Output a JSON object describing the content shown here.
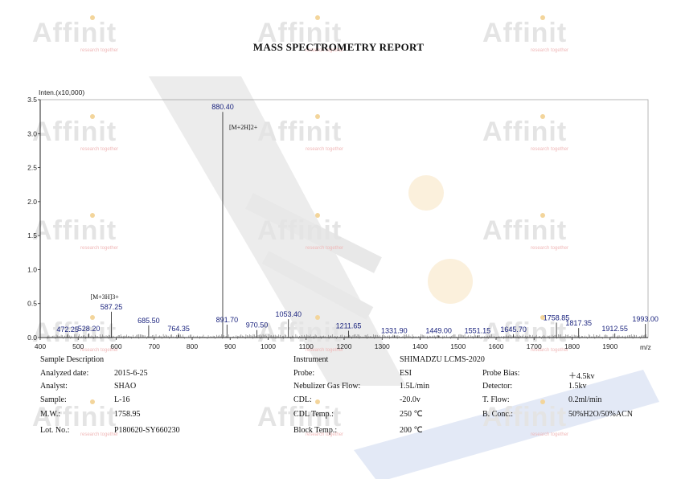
{
  "title": "MASS SPECTROMETRY REPORT",
  "watermark": {
    "brand": "Affinit",
    "tagline": "research together"
  },
  "chart_data": {
    "type": "bar",
    "ylabel": "Inten.(x10,000)",
    "xlabel": "m/z",
    "xlim": [
      400,
      2000
    ],
    "ylim": [
      0,
      3.5
    ],
    "x_ticks": [
      400,
      500,
      600,
      700,
      800,
      900,
      1000,
      1100,
      1200,
      1300,
      1400,
      1500,
      1600,
      1700,
      1800,
      1900
    ],
    "y_ticks": [
      "0.0",
      "0.5",
      "1.0",
      "1.5",
      "2.0",
      "2.5",
      "3.0",
      "3.5"
    ],
    "peaks": [
      {
        "x": 472.25,
        "y": 0.05,
        "label": "472.25"
      },
      {
        "x": 528.2,
        "y": 0.06,
        "label": "528.20"
      },
      {
        "x": 587.25,
        "y": 0.38,
        "label": "587.25"
      },
      {
        "x": 685.5,
        "y": 0.18,
        "label": "685.50"
      },
      {
        "x": 764.35,
        "y": 0.06,
        "label": "764.35"
      },
      {
        "x": 880.4,
        "y": 3.32,
        "label": "880.40"
      },
      {
        "x": 891.7,
        "y": 0.19,
        "label": "891.70"
      },
      {
        "x": 970.5,
        "y": 0.11,
        "label": "970.50"
      },
      {
        "x": 1053.4,
        "y": 0.27,
        "label": "1053.40"
      },
      {
        "x": 1211.65,
        "y": 0.1,
        "label": "1211.65"
      },
      {
        "x": 1331.9,
        "y": 0.03,
        "label": "1331.90"
      },
      {
        "x": 1449.0,
        "y": 0.03,
        "label": "1449.00"
      },
      {
        "x": 1551.15,
        "y": 0.03,
        "label": "1551.15"
      },
      {
        "x": 1645.7,
        "y": 0.05,
        "label": "1645.70"
      },
      {
        "x": 1758.85,
        "y": 0.22,
        "label": "1758.85"
      },
      {
        "x": 1817.35,
        "y": 0.14,
        "label": "1817.35"
      },
      {
        "x": 1912.55,
        "y": 0.06,
        "label": "1912.55"
      },
      {
        "x": 1993.0,
        "y": 0.2,
        "label": "1993.00"
      }
    ],
    "annotations": [
      {
        "text": "[M+2H]2+",
        "x": 880.4
      },
      {
        "text": "[M+3H]3+",
        "x": 587.25
      }
    ]
  },
  "info": {
    "sample_description": "Sample Description",
    "left": [
      {
        "label": "Analyzed date:",
        "value": "2015-6-25"
      },
      {
        "label": "Analyst:",
        "value": "SHAO"
      },
      {
        "label": "Sample:",
        "value": "L-16"
      },
      {
        "label": "M.W.:",
        "value": "1758.95"
      },
      {
        "label": "Lot. No.:",
        "value": "P180620-SY660230"
      }
    ],
    "instrument_label": "Instrument",
    "instrument_value": "SHIMADZU LCMS-2020",
    "middle": [
      {
        "label": "Probe:",
        "value": "ESI"
      },
      {
        "label": "Nebulizer Gas Flow:",
        "value": "1.5L/min"
      },
      {
        "label": "CDL:",
        "value": "-20.0v"
      },
      {
        "label": "CDL Temp.:",
        "value": "250 ℃"
      },
      {
        "label": "Block Temp.:",
        "value": "200 ℃"
      }
    ],
    "right": [
      {
        "label": "Probe Bias:",
        "value": "＋4.5kv"
      },
      {
        "label": "Detector:",
        "value": "1.5kv"
      },
      {
        "label": "T. Flow:",
        "value": "0.2ml/min"
      },
      {
        "label": "B. Conc.:",
        "value": "50%H2O/50%ACN"
      }
    ]
  }
}
